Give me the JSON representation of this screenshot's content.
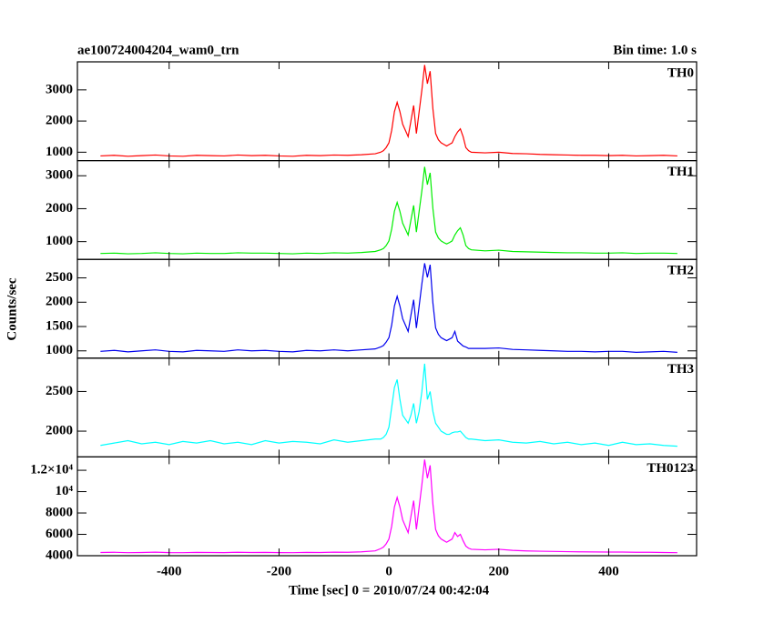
{
  "chart_data": {
    "type": "line",
    "title": "ae100724004204_wam0_trn",
    "subtitle": "Bin time: 1.0 s",
    "ylabel": "Counts/sec",
    "xlabel": "Time [sec] 0 = 2010/07/24 00:42:04",
    "xlim": [
      -567,
      560
    ],
    "xticks": [
      -400,
      -200,
      0,
      200,
      400
    ],
    "x": [
      -525,
      -500,
      -475,
      -450,
      -425,
      -400,
      -375,
      -350,
      -325,
      -300,
      -275,
      -250,
      -225,
      -200,
      -175,
      -150,
      -125,
      -100,
      -75,
      -50,
      -25,
      -15,
      -10,
      -5,
      0,
      5,
      10,
      15,
      20,
      25,
      30,
      35,
      40,
      45,
      50,
      55,
      60,
      65,
      70,
      75,
      80,
      85,
      90,
      95,
      100,
      105,
      110,
      115,
      120,
      125,
      130,
      135,
      140,
      145,
      150,
      175,
      200,
      225,
      250,
      275,
      300,
      325,
      350,
      375,
      400,
      425,
      450,
      475,
      500,
      525
    ],
    "panels": [
      {
        "name": "TH0",
        "color": "#ff0000",
        "ylim": [
          730,
          3900
        ],
        "yticks": [
          1000,
          2000,
          3000
        ],
        "values": [
          880,
          900,
          870,
          890,
          910,
          880,
          870,
          900,
          890,
          880,
          910,
          890,
          900,
          880,
          870,
          900,
          890,
          910,
          900,
          920,
          950,
          1000,
          1050,
          1150,
          1300,
          1700,
          2300,
          2600,
          2300,
          1900,
          1700,
          1500,
          2000,
          2500,
          1600,
          2300,
          3000,
          3800,
          3200,
          3600,
          2400,
          1600,
          1400,
          1300,
          1250,
          1200,
          1250,
          1300,
          1500,
          1650,
          1750,
          1500,
          1150,
          1050,
          1000,
          980,
          1000,
          960,
          950,
          930,
          920,
          910,
          900,
          900,
          890,
          900,
          880,
          890,
          900,
          880
        ]
      },
      {
        "name": "TH1",
        "color": "#00ee00",
        "ylim": [
          460,
          3460
        ],
        "yticks": [
          1000,
          2000,
          3000
        ],
        "values": [
          640,
          650,
          630,
          640,
          660,
          640,
          630,
          650,
          640,
          640,
          660,
          650,
          650,
          640,
          630,
          650,
          640,
          660,
          650,
          670,
          700,
          750,
          790,
          880,
          1020,
          1380,
          1920,
          2190,
          1920,
          1560,
          1380,
          1200,
          1650,
          2100,
          1290,
          1920,
          2550,
          3270,
          2730,
          3090,
          2010,
          1290,
          1110,
          1020,
          970,
          930,
          970,
          1020,
          1200,
          1330,
          1420,
          1200,
          880,
          790,
          750,
          720,
          740,
          700,
          690,
          680,
          670,
          660,
          660,
          650,
          650,
          660,
          640,
          650,
          650,
          640
        ]
      },
      {
        "name": "TH2",
        "color": "#0000ee",
        "ylim": [
          850,
          2880
        ],
        "yticks": [
          1000,
          1500,
          2000,
          2500
        ],
        "values": [
          990,
          1010,
          980,
          1000,
          1020,
          990,
          980,
          1010,
          1000,
          990,
          1020,
          1000,
          1010,
          990,
          980,
          1010,
          1000,
          1020,
          1000,
          1020,
          1040,
          1080,
          1110,
          1180,
          1270,
          1530,
          1920,
          2120,
          1920,
          1660,
          1530,
          1400,
          1730,
          2050,
          1470,
          1920,
          2380,
          2800,
          2510,
          2770,
          1990,
          1470,
          1340,
          1270,
          1240,
          1210,
          1240,
          1270,
          1400,
          1200,
          1150,
          1100,
          1080,
          1050,
          1050,
          1050,
          1060,
          1030,
          1020,
          1010,
          1000,
          990,
          990,
          980,
          990,
          990,
          970,
          980,
          990,
          970
        ]
      },
      {
        "name": "TH3",
        "color": "#00ffff",
        "ylim": [
          1675,
          2920
        ],
        "yticks": [
          2000,
          2500
        ],
        "values": [
          1820,
          1850,
          1880,
          1840,
          1860,
          1830,
          1870,
          1850,
          1880,
          1840,
          1860,
          1830,
          1880,
          1850,
          1870,
          1860,
          1840,
          1890,
          1860,
          1880,
          1900,
          1900,
          1920,
          1960,
          2050,
          2300,
          2550,
          2650,
          2400,
          2200,
          2150,
          2100,
          2200,
          2350,
          2100,
          2250,
          2500,
          2850,
          2400,
          2500,
          2250,
          2100,
          2050,
          2000,
          1980,
          1960,
          1960,
          1980,
          1990,
          1990,
          2000,
          1960,
          1920,
          1900,
          1900,
          1880,
          1890,
          1860,
          1850,
          1870,
          1840,
          1860,
          1830,
          1850,
          1820,
          1860,
          1830,
          1840,
          1820,
          1810
        ]
      },
      {
        "name": "TH0123",
        "color": "#ff00ff",
        "ylim": [
          4000,
          13250
        ],
        "yticks": [
          4000,
          6000,
          8000,
          {
            "value": 10000,
            "label": "10⁴"
          },
          {
            "value": 12000,
            "label": "1.2×10⁴"
          }
        ],
        "values": [
          4300,
          4320,
          4280,
          4300,
          4330,
          4290,
          4280,
          4310,
          4300,
          4290,
          4320,
          4300,
          4310,
          4290,
          4280,
          4310,
          4300,
          4330,
          4320,
          4360,
          4450,
          4660,
          4810,
          5110,
          5560,
          6760,
          8560,
          9460,
          8560,
          7360,
          6760,
          6160,
          7660,
          9160,
          6460,
          8560,
          10660,
          13000,
          11260,
          12460,
          8860,
          6460,
          5860,
          5560,
          5410,
          5260,
          5410,
          5560,
          6160,
          5800,
          6000,
          5400,
          4900,
          4700,
          4600,
          4550,
          4600,
          4500,
          4450,
          4420,
          4400,
          4380,
          4360,
          4350,
          4340,
          4340,
          4320,
          4320,
          4300,
          4280
        ]
      }
    ]
  }
}
